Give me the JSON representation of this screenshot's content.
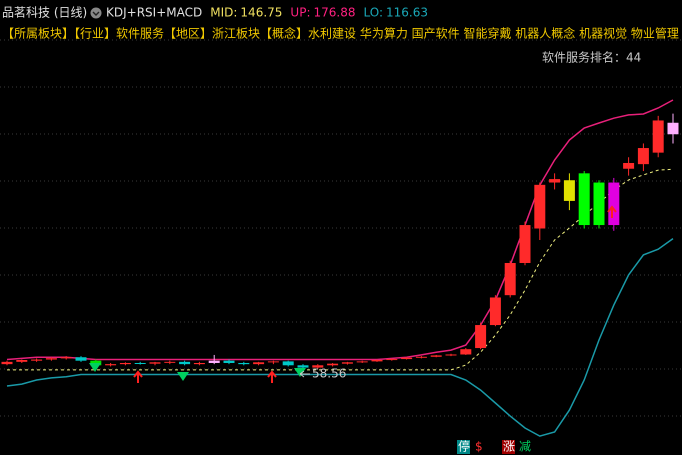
{
  "header": {
    "title": "品茗科技 (日线)",
    "indicator": "KDJ+RSI+MACD",
    "tags": "【所属板块】【行业】软件服务【地区】浙江板块【概念】水利建设 华为算力 国产软件 智能穿戴 机器人概念 机器视觉 物业管理",
    "rank_label": "软件服务排名：",
    "rank": 44
  },
  "footer": {
    "icons": [
      "停",
      "$",
      "涨",
      "减"
    ]
  },
  "chart_data": {
    "type": "candlestick",
    "ylim": [
      29,
      203
    ],
    "open": [
      62,
      63,
      63.5,
      64,
      64.5,
      65,
      63.5,
      61.5,
      62,
      62.5,
      62.2,
      62.8,
      63,
      62,
      62.5,
      63.5,
      62.5,
      62,
      62.8,
      63.2,
      61.5,
      60.5,
      61.5,
      62.2,
      62.8,
      63.2,
      63.8,
      64.2,
      64.8,
      65.2,
      65.8,
      66.2,
      69,
      79,
      92,
      106,
      121,
      141,
      142,
      145,
      141,
      141,
      147,
      149,
      154,
      167
    ],
    "high": [
      63.5,
      64,
      64.5,
      65,
      65.5,
      65.5,
      64,
      62.5,
      62.8,
      63,
      63,
      63.5,
      63.5,
      63,
      66,
      64,
      63,
      63,
      63.5,
      63.5,
      62,
      62,
      62.5,
      63,
      63.5,
      64,
      64.5,
      65,
      65.5,
      66,
      66.5,
      69,
      80,
      92,
      107,
      124,
      141,
      145,
      145,
      146,
      142,
      143,
      152,
      158,
      170,
      171
    ],
    "low": [
      61.5,
      62.5,
      63,
      63.5,
      64,
      63,
      61,
      61,
      61.5,
      61.8,
      61.5,
      62,
      61.5,
      61.5,
      62,
      62,
      61.5,
      61.5,
      62,
      61,
      58.56,
      60,
      61,
      61.8,
      62.5,
      63,
      63.5,
      64,
      64.5,
      65,
      65.5,
      66,
      68.5,
      78.5,
      91,
      105,
      116,
      138,
      129,
      121,
      121,
      120,
      144,
      146,
      152,
      158
    ],
    "close": [
      63,
      63.8,
      64,
      64.6,
      65,
      63.5,
      61.5,
      62,
      62.5,
      62.2,
      62.8,
      63,
      62,
      62.5,
      63.5,
      62.5,
      62,
      62.8,
      63.2,
      61.5,
      60.5,
      61.5,
      62.2,
      62.8,
      63.2,
      63.8,
      64.2,
      64.8,
      65.2,
      65.8,
      66.2,
      68.5,
      79,
      91,
      106,
      122.5,
      140,
      142.5,
      133,
      122.5,
      122.5,
      122.5,
      149.5,
      156,
      168,
      162
    ],
    "colors": [
      "#ff2a2a",
      "#ff2a2a",
      "#ff2a2a",
      "#ff2a2a",
      "#ff2a2a",
      "#00c8c8",
      "#00e000",
      "#ff2a2a",
      "#ff2a2a",
      "#00c8c8",
      "#ff2a2a",
      "#ff2a2a",
      "#00c8c8",
      "#ff2a2a",
      "#ffb0ff",
      "#00c8c8",
      "#00c8c8",
      "#ff2a2a",
      "#ff2a2a",
      "#00c8c8",
      "#00c8c8",
      "#ff2a2a",
      "#ff2a2a",
      "#ff2a2a",
      "#ff2a2a",
      "#ff2a2a",
      "#ff2a2a",
      "#ff2a2a",
      "#ff2a2a",
      "#ff2a2a",
      "#ff2a2a",
      "#ff2a2a",
      "#ff2a2a",
      "#ff2a2a",
      "#ff2a2a",
      "#ff2a2a",
      "#ff2a2a",
      "#ff2a2a",
      "#e0e000",
      "#00ff00",
      "#00ff00",
      "#e000e0",
      "#ff2a2a",
      "#ff2a2a",
      "#ff2a2a",
      "#ffb0ff"
    ],
    "series": [
      {
        "name": "MID:",
        "color": "#f0f080",
        "values": [
          59.5,
          59.5,
          59.5,
          59.5,
          59.5,
          59.5,
          59.5,
          59.5,
          59.5,
          59.5,
          59.5,
          59.5,
          59.5,
          59.5,
          59.5,
          59.5,
          59.5,
          59.5,
          59.5,
          59.5,
          59.5,
          59.5,
          59.5,
          59.5,
          59.5,
          59.5,
          59.5,
          59.5,
          59.5,
          59.5,
          59.5,
          61.6,
          67.2,
          74.6,
          83.4,
          94.2,
          106.4,
          116,
          121.2,
          126.8,
          132.1,
          137.7,
          142.1,
          144.3,
          146.4,
          146.75
        ]
      },
      {
        "name": "UP:",
        "color": "#e8207a",
        "values": [
          64,
          64.5,
          65,
          65,
          65,
          64.5,
          64,
          64,
          64,
          64,
          64,
          64,
          64,
          64,
          64,
          64,
          64,
          64,
          64,
          64,
          64,
          64,
          64,
          64,
          64,
          64,
          64.5,
          65,
          66,
          67.2,
          68.1,
          70.3,
          79,
          89.9,
          105.1,
          122.5,
          139.9,
          150.8,
          159.5,
          164.7,
          166.9,
          169,
          170.4,
          170.8,
          173.4,
          176.88
        ]
      },
      {
        "name": "LO:",
        "color": "#1a9aa8",
        "values": [
          52.5,
          53.3,
          55.1,
          56,
          56.5,
          57.5,
          57.5,
          57.5,
          57.5,
          57.5,
          57.5,
          57.5,
          57.5,
          57.5,
          57.5,
          57.5,
          57.5,
          57.5,
          57.5,
          57.5,
          57.5,
          57.5,
          57.5,
          57.5,
          57.5,
          57.5,
          57.5,
          57.5,
          57.5,
          57.5,
          57.5,
          55.1,
          50.7,
          45.1,
          39.4,
          34.2,
          30.7,
          32.5,
          42,
          55.1,
          72.5,
          87.7,
          100.8,
          109.5,
          112,
          116.63
        ]
      }
    ]
  }
}
